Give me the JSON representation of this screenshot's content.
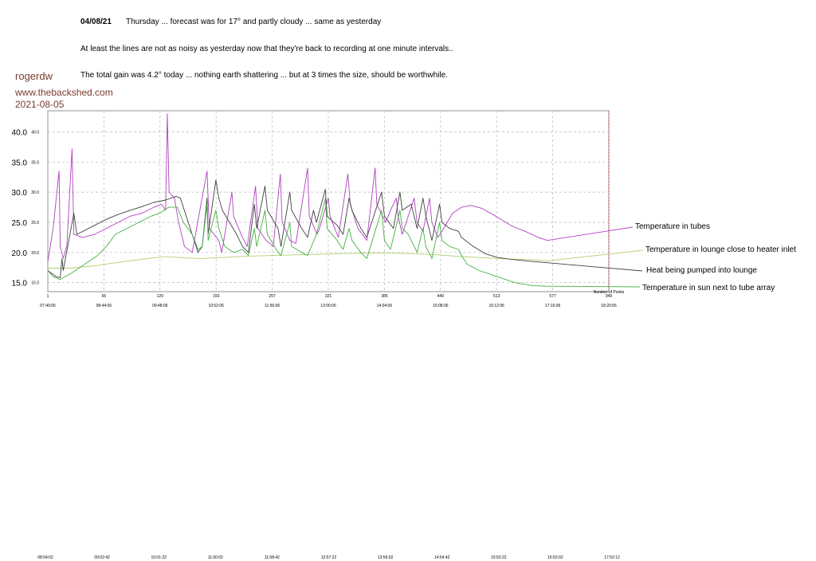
{
  "header": {
    "date": "04/08/21",
    "line1": "Thursday  ...  forecast was for 17° and partly cloudy  ...  same as yesterday",
    "line2": "At least the lines are not as noisy as yesterday now that they're back to recording at one minute intervals..",
    "line3": "The total gain was 4.2° today  ...  nothing earth shattering  ...  but at 3 times the size, should be worthwhile."
  },
  "branding": {
    "user": "rogerdw",
    "site": "www.thebackshed.com",
    "date": "2021-08-05"
  },
  "legend": {
    "tubes": "Temperature in tubes",
    "inlet": "Temperature in lounge close to heater inlet",
    "pumped": "Heat being pumped into lounge",
    "sun": "Temperature in sun next to tube array"
  },
  "chart_data": {
    "type": "line",
    "title": "",
    "xlabel": "",
    "ylabel": "",
    "xlim": [
      1,
      949
    ],
    "ylim": [
      13.5,
      43.5
    ],
    "y_major_ticks": [
      "40.0",
      "35.0",
      "30.0",
      "25.0",
      "20.0",
      "15.0"
    ],
    "y_minor_ticks": [
      "40.0",
      "35.0",
      "30.0",
      "25.0",
      "20.0",
      "15.0"
    ],
    "x_point_ticks": [
      "1",
      "65",
      "129",
      "193",
      "257",
      "321",
      "385",
      "449",
      "513",
      "577",
      "949"
    ],
    "x_time_ticks": [
      "07:40:06",
      "08:44:06",
      "09:48:06",
      "10:52:06",
      "11:56:06",
      "13:00:06",
      "14:04:06",
      "15:08:06",
      "16:12:06",
      "17:16:06",
      "18:20:06"
    ],
    "x_time_ticks_bottom": [
      "08:04:02",
      "09:02:42",
      "10:01:22",
      "11:00:02",
      "11:58:42",
      "12:57:22",
      "13:56:02",
      "14:54:42",
      "15:53:22",
      "16:52:02",
      "17:52:12"
    ],
    "axis_note": "Number of Points",
    "series": [
      {
        "name": "Temperature in tubes",
        "color": "#b040c0",
        "points": [
          [
            1,
            18.5
          ],
          [
            10,
            24
          ],
          [
            20,
            33.5
          ],
          [
            22,
            21
          ],
          [
            27,
            19
          ],
          [
            33,
            21
          ],
          [
            42,
            37.2
          ],
          [
            45,
            23
          ],
          [
            60,
            22.5
          ],
          [
            80,
            23
          ],
          [
            100,
            24
          ],
          [
            120,
            25
          ],
          [
            140,
            26
          ],
          [
            160,
            26.5
          ],
          [
            180,
            27.5
          ],
          [
            193,
            28
          ],
          [
            200,
            27
          ],
          [
            203,
            43
          ],
          [
            206,
            30
          ],
          [
            215,
            29
          ],
          [
            222,
            25
          ],
          [
            232,
            21
          ],
          [
            245,
            20
          ],
          [
            270,
            33.5
          ],
          [
            274,
            24
          ],
          [
            290,
            22
          ],
          [
            295,
            20
          ],
          [
            312,
            30
          ],
          [
            315,
            26
          ],
          [
            330,
            22.5
          ],
          [
            338,
            21
          ],
          [
            352,
            31
          ],
          [
            356,
            24
          ],
          [
            370,
            22
          ],
          [
            382,
            21
          ],
          [
            394,
            33
          ],
          [
            397,
            25
          ],
          [
            410,
            22
          ],
          [
            420,
            21.5
          ],
          [
            440,
            34
          ],
          [
            443,
            26
          ],
          [
            456,
            23
          ],
          [
            460,
            24
          ],
          [
            475,
            29
          ],
          [
            478,
            26
          ],
          [
            492,
            22.5
          ],
          [
            508,
            33
          ],
          [
            512,
            28
          ],
          [
            525,
            24
          ],
          [
            540,
            22
          ],
          [
            554,
            34
          ],
          [
            557,
            28
          ],
          [
            572,
            25
          ],
          [
            580,
            27
          ],
          [
            590,
            29
          ],
          [
            593,
            26
          ],
          [
            600,
            23
          ],
          [
            620,
            29
          ],
          [
            625,
            25
          ],
          [
            635,
            23.5
          ],
          [
            646,
            29
          ],
          [
            650,
            25
          ],
          [
            660,
            22.5
          ],
          [
            670,
            24
          ],
          [
            685,
            26.5
          ],
          [
            700,
            27.5
          ],
          [
            716,
            27.8
          ],
          [
            735,
            27.3
          ],
          [
            760,
            25.9
          ],
          [
            785,
            24.4
          ],
          [
            810,
            23.4
          ],
          [
            830,
            22.5
          ],
          [
            845,
            22
          ]
        ]
      },
      {
        "name": "Temperature in lounge close to heater inlet",
        "color": "#b0d070",
        "points": [
          [
            1,
            17.4
          ],
          [
            40,
            17.4
          ],
          [
            80,
            17.8
          ],
          [
            130,
            18.5
          ],
          [
            170,
            19
          ],
          [
            200,
            19.3
          ],
          [
            230,
            19.1
          ],
          [
            260,
            19
          ],
          [
            300,
            19.2
          ],
          [
            340,
            19.4
          ],
          [
            380,
            19.5
          ],
          [
            420,
            19.6
          ],
          [
            460,
            19.7
          ],
          [
            500,
            19.8
          ],
          [
            540,
            19.9
          ],
          [
            580,
            19.9
          ],
          [
            620,
            19.8
          ],
          [
            660,
            19.6
          ],
          [
            700,
            19.3
          ],
          [
            740,
            19.1
          ],
          [
            780,
            18.9
          ],
          [
            820,
            18.8
          ],
          [
            845,
            18.6
          ]
        ]
      },
      {
        "name": "Heat being pumped into lounge",
        "color": "#404040",
        "points": [
          [
            1,
            17
          ],
          [
            15,
            16
          ],
          [
            22,
            15.8
          ],
          [
            25,
            19
          ],
          [
            27,
            17
          ],
          [
            45,
            26.5
          ],
          [
            50,
            23
          ],
          [
            80,
            24.5
          ],
          [
            100,
            25.5
          ],
          [
            120,
            26.3
          ],
          [
            140,
            27
          ],
          [
            160,
            27.6
          ],
          [
            180,
            28.3
          ],
          [
            200,
            28.7
          ],
          [
            218,
            29.3
          ],
          [
            225,
            29
          ],
          [
            230,
            27.5
          ],
          [
            245,
            23
          ],
          [
            255,
            20
          ],
          [
            262,
            21
          ],
          [
            270,
            29
          ],
          [
            272,
            23
          ],
          [
            285,
            32
          ],
          [
            290,
            29
          ],
          [
            296,
            27
          ],
          [
            320,
            23
          ],
          [
            330,
            21
          ],
          [
            340,
            20
          ],
          [
            350,
            28
          ],
          [
            354,
            24
          ],
          [
            368,
            31
          ],
          [
            372,
            27
          ],
          [
            390,
            24
          ],
          [
            395,
            21
          ],
          [
            410,
            30
          ],
          [
            413,
            27
          ],
          [
            430,
            24
          ],
          [
            440,
            22.5
          ],
          [
            450,
            27
          ],
          [
            455,
            25
          ],
          [
            470,
            30.5
          ],
          [
            473,
            26
          ],
          [
            490,
            24.5
          ],
          [
            500,
            23
          ],
          [
            510,
            29
          ],
          [
            515,
            27
          ],
          [
            530,
            24
          ],
          [
            540,
            22.5
          ],
          [
            565,
            30
          ],
          [
            570,
            26
          ],
          [
            585,
            24
          ],
          [
            596,
            30
          ],
          [
            600,
            27
          ],
          [
            615,
            28
          ],
          [
            625,
            24
          ],
          [
            635,
            29
          ],
          [
            640,
            26
          ],
          [
            650,
            22
          ],
          [
            663,
            28
          ],
          [
            667,
            25
          ],
          [
            680,
            24
          ],
          [
            695,
            23.5
          ],
          [
            700,
            22.5
          ],
          [
            720,
            21
          ],
          [
            740,
            19.8
          ],
          [
            760,
            19.2
          ],
          [
            780,
            18.9
          ],
          [
            810,
            18.6
          ],
          [
            845,
            18.3
          ]
        ]
      },
      {
        "name": "Temperature in sun next to tube array",
        "color": "#45b045",
        "points": [
          [
            1,
            17
          ],
          [
            10,
            16
          ],
          [
            22,
            15.5
          ],
          [
            30,
            16
          ],
          [
            40,
            16.5
          ],
          [
            55,
            17.5
          ],
          [
            70,
            18.5
          ],
          [
            85,
            19.5
          ],
          [
            100,
            21
          ],
          [
            115,
            23
          ],
          [
            135,
            24
          ],
          [
            155,
            25
          ],
          [
            175,
            26
          ],
          [
            190,
            26.5
          ],
          [
            205,
            27.5
          ],
          [
            220,
            27.5
          ],
          [
            230,
            25
          ],
          [
            245,
            23
          ],
          [
            255,
            20.5
          ],
          [
            262,
            21
          ],
          [
            270,
            28
          ],
          [
            272,
            22
          ],
          [
            285,
            27
          ],
          [
            290,
            24
          ],
          [
            300,
            21
          ],
          [
            315,
            20
          ],
          [
            330,
            20.5
          ],
          [
            340,
            19.5
          ],
          [
            350,
            24
          ],
          [
            354,
            21
          ],
          [
            368,
            27
          ],
          [
            372,
            23
          ],
          [
            390,
            20
          ],
          [
            395,
            19.5
          ],
          [
            410,
            25
          ],
          [
            413,
            21
          ],
          [
            430,
            20
          ],
          [
            440,
            19.5
          ],
          [
            455,
            23
          ],
          [
            470,
            29
          ],
          [
            473,
            24
          ],
          [
            490,
            22
          ],
          [
            500,
            20.5
          ],
          [
            510,
            24
          ],
          [
            515,
            22
          ],
          [
            530,
            20
          ],
          [
            540,
            19
          ],
          [
            565,
            27
          ],
          [
            570,
            22
          ],
          [
            580,
            20.5
          ],
          [
            596,
            27
          ],
          [
            600,
            24
          ],
          [
            610,
            23
          ],
          [
            625,
            20
          ],
          [
            635,
            24
          ],
          [
            640,
            21
          ],
          [
            650,
            19
          ],
          [
            663,
            25
          ],
          [
            667,
            22
          ],
          [
            680,
            21
          ],
          [
            695,
            20.5
          ],
          [
            700,
            19.5
          ],
          [
            710,
            18
          ],
          [
            730,
            17
          ],
          [
            760,
            16
          ],
          [
            790,
            15
          ],
          [
            820,
            14.5
          ],
          [
            845,
            14.4
          ]
        ]
      }
    ]
  }
}
